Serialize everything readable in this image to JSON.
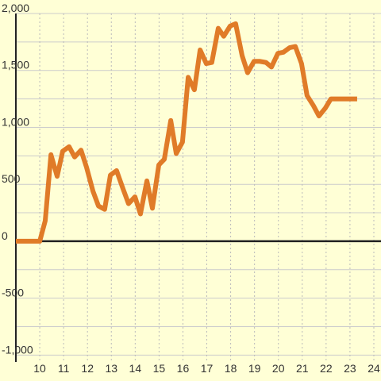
{
  "chart_data": {
    "type": "line",
    "x": [
      9,
      10,
      10.23,
      10.47,
      10.73,
      10.96,
      11.23,
      11.46,
      11.73,
      11.96,
      12.23,
      12.46,
      12.72,
      12.96,
      13.22,
      13.49,
      13.72,
      13.99,
      14.22,
      14.49,
      14.72,
      14.99,
      15.22,
      15.49,
      15.72,
      15.98,
      16.22,
      16.48,
      16.72,
      16.98,
      17.21,
      17.48,
      17.71,
      17.98,
      18.21,
      18.48,
      18.71,
      18.98,
      19.21,
      19.48,
      19.71,
      19.98,
      20.21,
      20.47,
      20.71,
      20.97,
      21.2,
      21.47,
      21.7,
      21.97,
      22.2,
      23.3
    ],
    "series": [
      {
        "color": "#e07b28",
        "values": [
          0,
          0,
          180,
          760,
          570,
          790,
          830,
          740,
          800,
          650,
          440,
          310,
          280,
          580,
          620,
          460,
          330,
          390,
          240,
          530,
          290,
          670,
          720,
          1060,
          770,
          870,
          1440,
          1330,
          1680,
          1560,
          1570,
          1870,
          1800,
          1890,
          1910,
          1630,
          1480,
          1580,
          1580,
          1570,
          1530,
          1650,
          1660,
          1700,
          1710,
          1560,
          1280,
          1190,
          1100,
          1170,
          1250,
          1250
        ]
      }
    ],
    "xlim": [
      9,
      24.3
    ],
    "xticks": [
      10,
      11,
      12,
      13,
      14,
      15,
      16,
      17,
      18,
      19,
      20,
      21,
      22,
      23,
      24
    ],
    "ylim": [
      -1060,
      2000
    ],
    "yticks": [
      {
        "value": -1000,
        "label": "-1,000"
      },
      -500,
      0,
      500,
      {
        "value": 1000,
        "label": "1,000"
      },
      {
        "value": 1500,
        "label": "1,500"
      },
      {
        "value": 2000,
        "label": "2,000"
      }
    ],
    "minor_yticks": [
      -750,
      -250,
      250,
      750,
      1250,
      1750
    ],
    "grid": true
  }
}
